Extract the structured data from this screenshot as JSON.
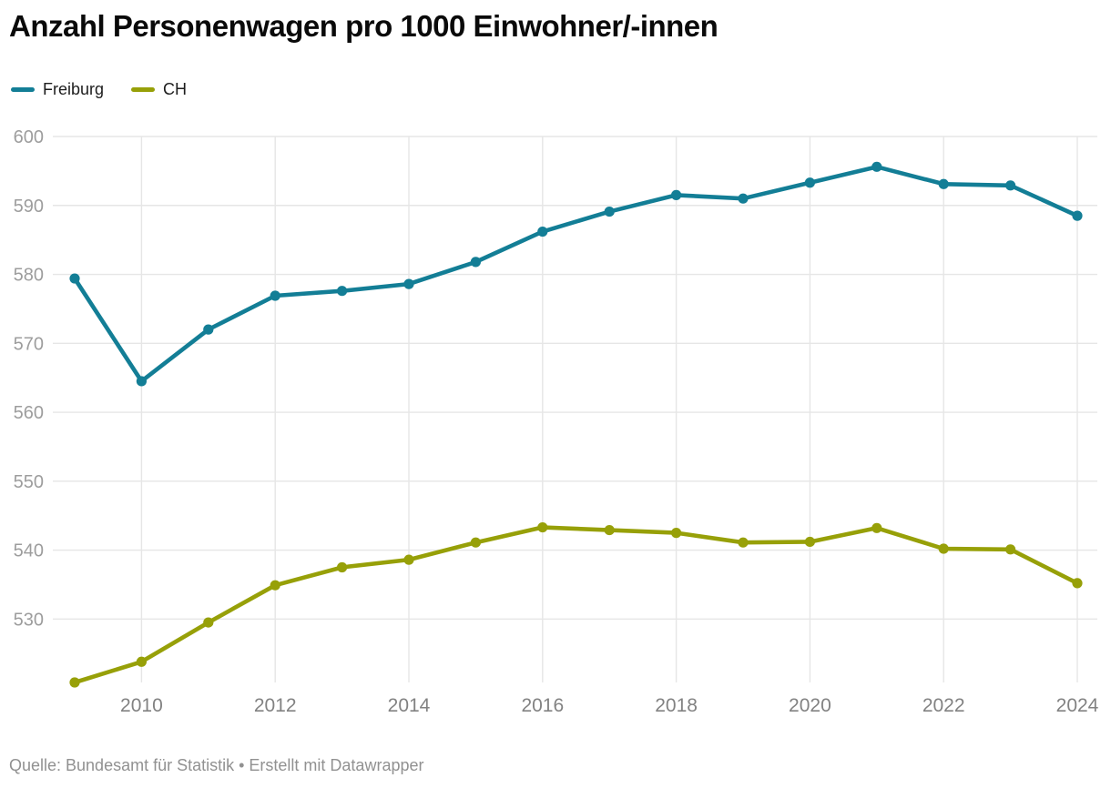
{
  "title": "Anzahl Personenwagen pro 1000 Einwohner/-innen",
  "footer": "Quelle: Bundesamt für Statistik • Erstellt mit Datawrapper",
  "legend": [
    {
      "label": "Freiburg",
      "color": "#137e96"
    },
    {
      "label": "CH",
      "color": "#97a008"
    }
  ],
  "colors": {
    "freiburg_line": "#137e96",
    "ch_line": "#97a008",
    "gridline": "#e6e6e6",
    "y_tick_label": "#9d9d9d",
    "x_tick_label": "#828282",
    "title_text": "#0a0a0a",
    "footer_text": "#919191",
    "background": "#ffffff"
  },
  "chart_data": {
    "type": "line",
    "title": "Anzahl Personenwagen pro 1000 Einwohner/-innen",
    "xlabel": "",
    "ylabel": "",
    "x": [
      2009,
      2010,
      2011,
      2012,
      2013,
      2014,
      2015,
      2016,
      2017,
      2018,
      2019,
      2020,
      2021,
      2022,
      2023,
      2024
    ],
    "series": [
      {
        "name": "Freiburg",
        "color": "#137e96",
        "values": [
          579.4,
          564.5,
          572.0,
          576.9,
          577.6,
          578.6,
          581.8,
          586.2,
          589.1,
          591.5,
          591.0,
          593.3,
          595.6,
          593.1,
          592.9,
          588.5
        ]
      },
      {
        "name": "CH",
        "color": "#97a008",
        "values": [
          520.8,
          523.8,
          529.5,
          534.9,
          537.5,
          538.6,
          541.1,
          543.3,
          542.9,
          542.5,
          541.1,
          541.2,
          543.2,
          540.2,
          540.1,
          535.2
        ]
      }
    ],
    "xlim": [
      2009,
      2024
    ],
    "ylim": [
      520.8,
      600
    ],
    "yticks": [
      530,
      540,
      550,
      560,
      570,
      580,
      590,
      600
    ],
    "xticks": [
      2010,
      2012,
      2014,
      2016,
      2018,
      2020,
      2022,
      2024
    ],
    "grid": true,
    "legend_position": "top-left",
    "source": "Bundesamt für Statistik",
    "tool": "Datawrapper"
  }
}
